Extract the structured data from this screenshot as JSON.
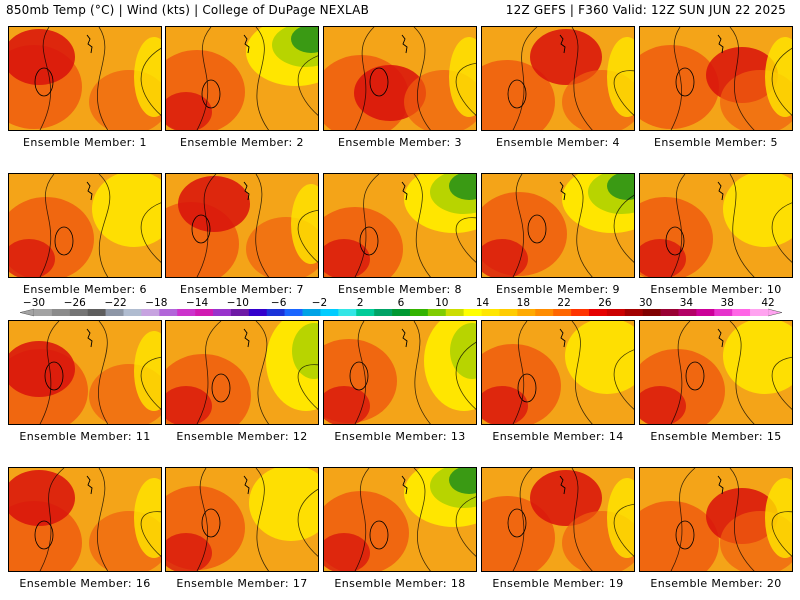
{
  "header": {
    "left": "850mb Temp (°C) | Wind (kts) | College of DuPage NEXLAB",
    "right": "12Z GEFS | F360 Valid: 12Z SUN JUN 22 2025"
  },
  "members": [
    {
      "label": "Ensemble Member: 1",
      "tone": "warm"
    },
    {
      "label": "Ensemble Member: 2",
      "tone": "cool-ne"
    },
    {
      "label": "Ensemble Member: 3",
      "tone": "warm"
    },
    {
      "label": "Ensemble Member: 4",
      "tone": "hot"
    },
    {
      "label": "Ensemble Member: 5",
      "tone": "hot"
    },
    {
      "label": "Ensemble Member: 6",
      "tone": "mild"
    },
    {
      "label": "Ensemble Member: 7",
      "tone": "hot"
    },
    {
      "label": "Ensemble Member: 8",
      "tone": "cool-ne"
    },
    {
      "label": "Ensemble Member: 9",
      "tone": "cool-ne"
    },
    {
      "label": "Ensemble Member: 10",
      "tone": "mild"
    },
    {
      "label": "Ensemble Member: 11",
      "tone": "hot"
    },
    {
      "label": "Ensemble Member: 12",
      "tone": "cool-e"
    },
    {
      "label": "Ensemble Member: 13",
      "tone": "cool-e"
    },
    {
      "label": "Ensemble Member: 14",
      "tone": "mild"
    },
    {
      "label": "Ensemble Member: 15",
      "tone": "mild"
    },
    {
      "label": "Ensemble Member: 16",
      "tone": "hot"
    },
    {
      "label": "Ensemble Member: 17",
      "tone": "mild"
    },
    {
      "label": "Ensemble Member: 18",
      "tone": "cool-ne"
    },
    {
      "label": "Ensemble Member: 19",
      "tone": "hot"
    },
    {
      "label": "Ensemble Member: 20",
      "tone": "hot"
    }
  ],
  "colorbar": {
    "ticks": [
      "−30",
      "−26",
      "−22",
      "−18",
      "−14",
      "−10",
      "−6",
      "−2",
      "2",
      "6",
      "10",
      "14",
      "18",
      "22",
      "26",
      "30",
      "34",
      "38",
      "42"
    ],
    "colors": [
      "#a3a3a3",
      "#8c8c8c",
      "#757575",
      "#5e5e5e",
      "#8d96a6",
      "#b0bcd0",
      "#c7a3e0",
      "#b266d9",
      "#cc33cc",
      "#d11ab2",
      "#9933cc",
      "#6e1aa6",
      "#3300cc",
      "#1a33d9",
      "#1a66ff",
      "#00a3e6",
      "#00ccff",
      "#33e6e6",
      "#00cc99",
      "#00a366",
      "#009933",
      "#33b300",
      "#80cc00",
      "#ccdd00",
      "#ffff00",
      "#ffe600",
      "#ffcc00",
      "#ffaa00",
      "#ff8c00",
      "#ff6600",
      "#ff3300",
      "#e60000",
      "#cc0000",
      "#a30000",
      "#800000",
      "#990033",
      "#b30066",
      "#cc0099",
      "#e633cc",
      "#ff66e6",
      "#ffa3f0"
    ]
  },
  "tone_colors": {
    "base": "#f4a418",
    "hot": "#d8120c",
    "warm": "#f06010",
    "yellow": "#ffe600",
    "lime": "#b8d400",
    "green": "#3a9a14",
    "outline": "#000000"
  }
}
